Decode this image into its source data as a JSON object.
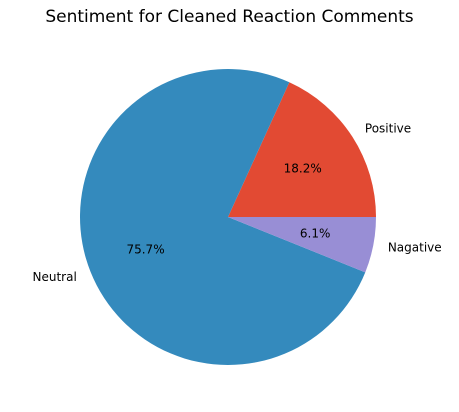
{
  "chart_data": {
    "type": "pie",
    "title": "Sentiment for Cleaned Reaction Comments",
    "start_angle_deg": 0,
    "direction": "counterclockwise",
    "slices": [
      {
        "label": "Positive",
        "value": 18.2,
        "pct_label": "18.2%",
        "color": "#E24A33"
      },
      {
        "label": "Neutral",
        "value": 75.7,
        "pct_label": "75.7%",
        "color": "#348ABD"
      },
      {
        "label": "Nagative",
        "value": 6.1,
        "pct_label": "6.1%",
        "color": "#988ED5"
      }
    ]
  }
}
